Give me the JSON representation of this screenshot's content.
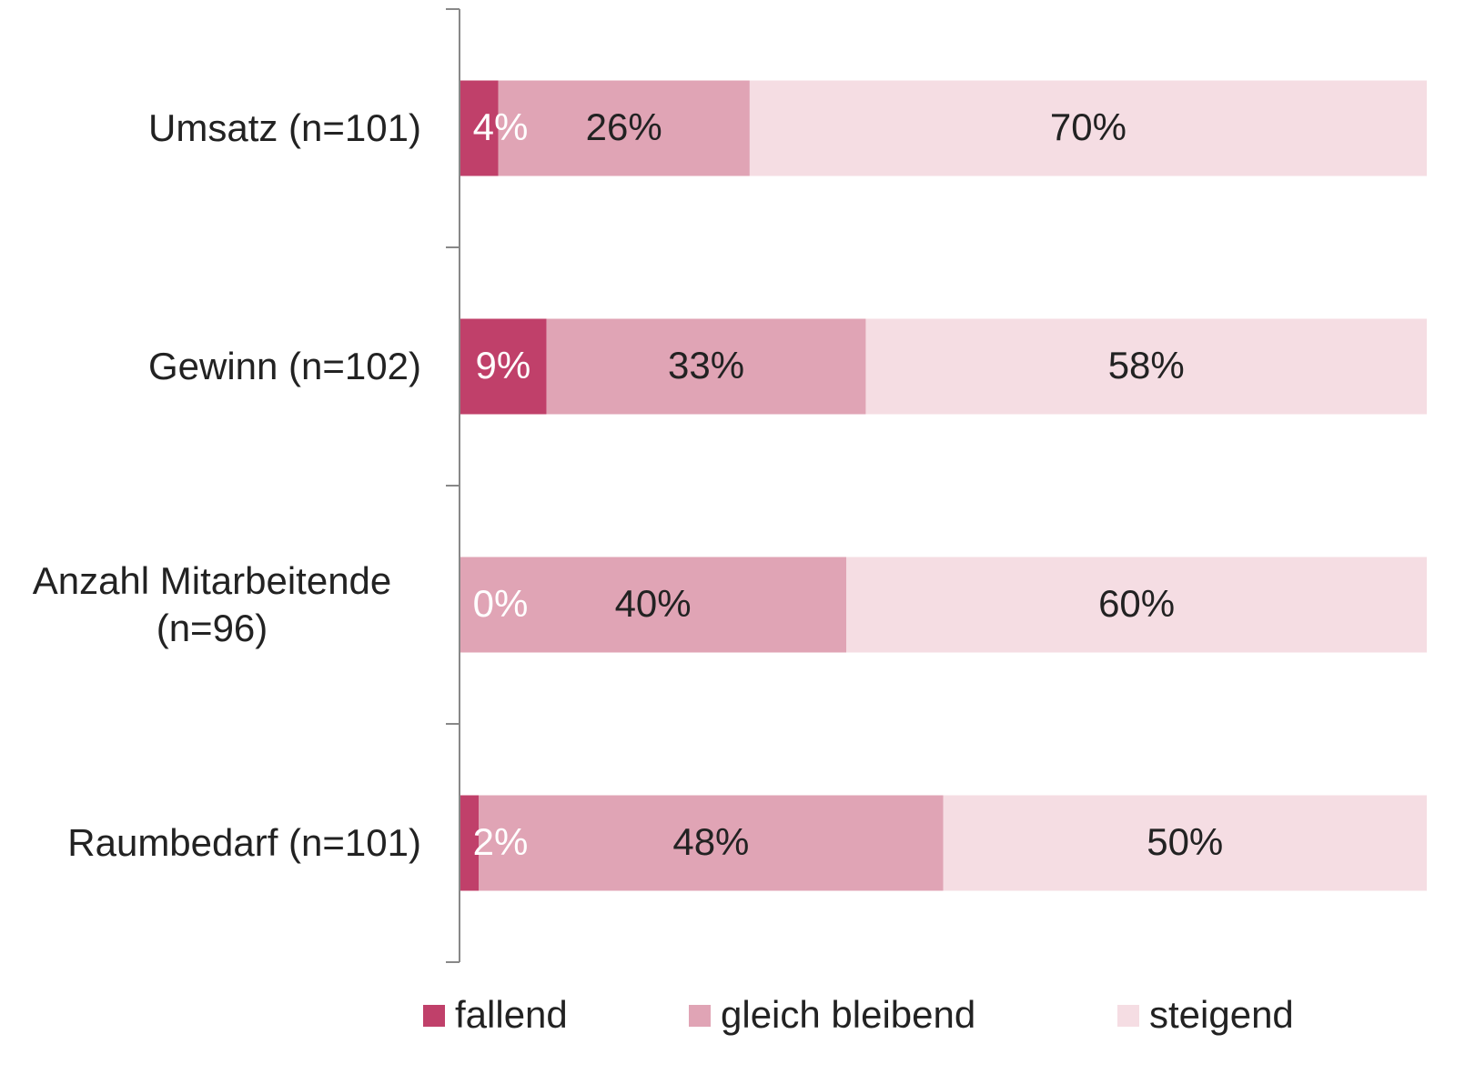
{
  "chart_data": {
    "type": "stacked-bar-horizontal",
    "categories": [
      "Umsatz (n=101)",
      "Gewinn (n=102)",
      "Anzahl Mitarbeitende (n=96)",
      "Raumbedarf (n=101)"
    ],
    "series": [
      {
        "name": "fallend",
        "color": "#c0406a",
        "values": [
          4,
          9,
          0,
          2
        ],
        "value_labels": [
          "4%",
          "9%",
          "0%",
          "2%"
        ]
      },
      {
        "name": "gleich bleibend",
        "color": "#e0a4b5",
        "values": [
          26,
          33,
          40,
          48
        ],
        "value_labels": [
          "26%",
          "33%",
          "40%",
          "48%"
        ]
      },
      {
        "name": "steigend",
        "color": "#f5dde3",
        "values": [
          70,
          58,
          60,
          50
        ],
        "value_labels": [
          "70%",
          "58%",
          "60%",
          "50%"
        ]
      }
    ],
    "xlim": [
      0,
      100
    ],
    "legend": "bottom"
  }
}
